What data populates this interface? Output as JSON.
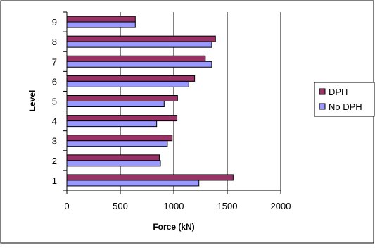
{
  "chart_data": {
    "type": "bar",
    "orientation": "horizontal",
    "categories": [
      "1",
      "2",
      "3",
      "4",
      "5",
      "6",
      "7",
      "8",
      "9"
    ],
    "series": [
      {
        "name": "DPH",
        "color": "#993366",
        "values": [
          1555,
          865,
          985,
          1030,
          1035,
          1195,
          1295,
          1390,
          640
        ]
      },
      {
        "name": "No DPH",
        "color": "#9999ff",
        "values": [
          1235,
          875,
          940,
          840,
          910,
          1140,
          1355,
          1355,
          640
        ]
      }
    ],
    "xlabel": "Force (kN)",
    "ylabel": "Level",
    "xlim": [
      0,
      2000
    ],
    "xticks": [
      "0",
      "500",
      "1000",
      "1500",
      "2000"
    ],
    "grid": "vertical",
    "legend": "right"
  }
}
